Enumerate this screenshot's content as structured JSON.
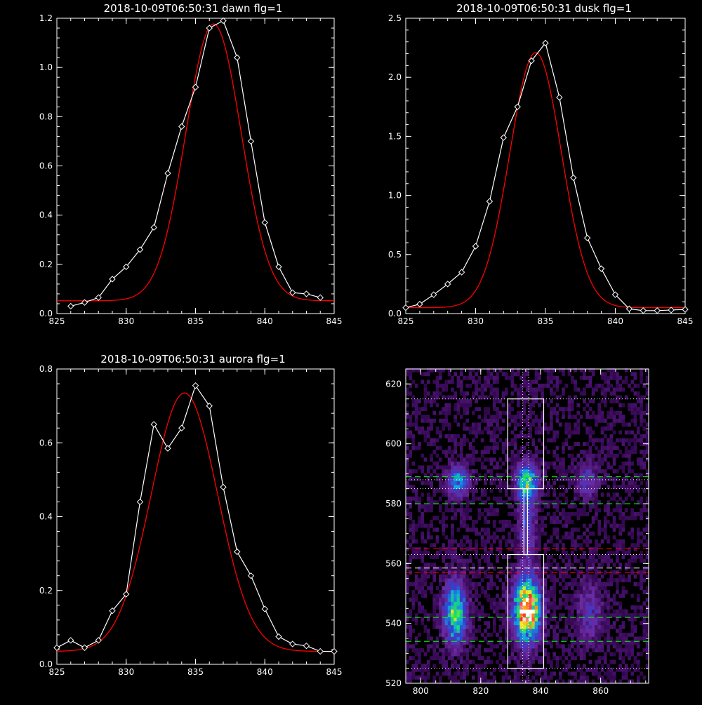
{
  "chart_data": [
    {
      "type": "line",
      "title": "2018-10-09T06:50:31 dawn flg=1",
      "xlim": [
        825,
        845
      ],
      "ylim": [
        0.0,
        1.2
      ],
      "xticks": [
        825,
        830,
        835,
        840,
        845
      ],
      "yticks": [
        0.0,
        0.2,
        0.4,
        0.6,
        0.8,
        1.0,
        1.2
      ],
      "ytick_labels": [
        "0.0",
        "0.2",
        "0.4",
        "0.6",
        "0.8",
        "1.0",
        "1.2"
      ],
      "data_color": "#ffffff",
      "fit_color": "#ff0000",
      "marker": "diamond",
      "x": [
        826,
        827,
        828,
        829,
        830,
        831,
        832,
        833,
        834,
        835,
        836,
        837,
        838,
        839,
        840,
        841,
        842,
        843,
        844
      ],
      "y": [
        0.03,
        0.045,
        0.065,
        0.14,
        0.19,
        0.26,
        0.35,
        0.57,
        0.76,
        0.92,
        1.16,
        1.19,
        1.04,
        0.7,
        0.37,
        0.19,
        0.085,
        0.08,
        0.065
      ],
      "fit": {
        "amplitude": 1.125,
        "center": 836.3,
        "sigma": 2.0,
        "offset": 0.052
      }
    },
    {
      "type": "line",
      "title": "2018-10-09T06:50:31 dusk flg=1",
      "xlim": [
        825,
        845
      ],
      "ylim": [
        0.0,
        2.5
      ],
      "xticks": [
        825,
        830,
        835,
        840,
        845
      ],
      "yticks": [
        0.0,
        0.5,
        1.0,
        1.5,
        2.0,
        2.5
      ],
      "ytick_labels": [
        "0.0",
        "0.5",
        "1.0",
        "1.5",
        "2.0",
        "2.5"
      ],
      "data_color": "#ffffff",
      "fit_color": "#ff0000",
      "marker": "diamond",
      "x": [
        825,
        826,
        827,
        828,
        829,
        830,
        831,
        832,
        833,
        834,
        835,
        836,
        837,
        838,
        839,
        840,
        841,
        842,
        843,
        844,
        845
      ],
      "y": [
        0.05,
        0.08,
        0.16,
        0.25,
        0.35,
        0.57,
        0.95,
        1.49,
        1.75,
        2.14,
        2.29,
        1.83,
        1.15,
        0.64,
        0.38,
        0.16,
        0.04,
        0.025,
        0.025,
        0.03,
        0.035
      ],
      "fit": {
        "amplitude": 2.16,
        "center": 834.3,
        "sigma": 1.85,
        "offset": 0.05
      }
    },
    {
      "type": "line",
      "title": "2018-10-09T06:50:31 aurora flg=1",
      "xlim": [
        825,
        845
      ],
      "ylim": [
        0.0,
        0.8
      ],
      "xticks": [
        825,
        830,
        835,
        840,
        845
      ],
      "yticks": [
        0.0,
        0.2,
        0.4,
        0.6,
        0.8
      ],
      "ytick_labels": [
        "0.0",
        "0.2",
        "0.4",
        "0.6",
        "0.8"
      ],
      "data_color": "#ffffff",
      "fit_color": "#ff0000",
      "marker": "diamond",
      "x": [
        825,
        826,
        827,
        828,
        829,
        830,
        831,
        832,
        833,
        834,
        835,
        836,
        837,
        838,
        839,
        840,
        841,
        842,
        843,
        844,
        845
      ],
      "y": [
        0.045,
        0.065,
        0.045,
        0.065,
        0.145,
        0.19,
        0.44,
        0.65,
        0.585,
        0.64,
        0.755,
        0.7,
        0.48,
        0.305,
        0.24,
        0.15,
        0.075,
        0.055,
        0.05,
        0.035,
        0.035
      ],
      "fit": {
        "amplitude": 0.7,
        "center": 834.2,
        "sigma": 2.4,
        "offset": 0.035
      }
    },
    {
      "type": "heatmap",
      "title": "",
      "xlim": [
        795,
        876
      ],
      "ylim": [
        520,
        625
      ],
      "xticks": [
        800,
        820,
        840,
        860
      ],
      "yticks": [
        520,
        540,
        560,
        580,
        600,
        620
      ],
      "colormap": [
        "#000000",
        "#3a0a5a",
        "#6a2aa0",
        "#3040d0",
        "#10a8e0",
        "#20e060",
        "#f0f020",
        "#ff2020",
        "#ffffff"
      ],
      "blobs": [
        {
          "x": 812,
          "y": 587,
          "sx": 2.5,
          "sy": 3.5,
          "a": 0.42
        },
        {
          "x": 835,
          "y": 587,
          "sx": 2.5,
          "sy": 4,
          "a": 0.5
        },
        {
          "x": 855,
          "y": 587,
          "sx": 2.5,
          "sy": 4,
          "a": 0.22
        },
        {
          "x": 811,
          "y": 543,
          "sx": 2.5,
          "sy": 7,
          "a": 0.6
        },
        {
          "x": 835,
          "y": 544,
          "sx": 3,
          "sy": 7,
          "a": 0.95
        },
        {
          "x": 856,
          "y": 543,
          "sx": 3,
          "sy": 7,
          "a": 0.2
        },
        {
          "x": 835,
          "y": 573,
          "sx": 2,
          "sy": 9,
          "a": 0.25
        }
      ],
      "boxes": [
        {
          "x0": 829,
          "x1": 841,
          "y0": 585,
          "y1": 615,
          "color": "#ffffff"
        },
        {
          "x0": 829,
          "x1": 841,
          "y0": 525,
          "y1": 563,
          "color": "#ffffff"
        },
        {
          "x0": 834.4,
          "x1": 835.6,
          "y0": 563,
          "y1": 585,
          "color": "#ffffff"
        }
      ],
      "vlines": [
        {
          "x": 834.0,
          "color": "#ffffff",
          "style": "dotted"
        },
        {
          "x": 836.0,
          "color": "#ffffff",
          "style": "dotted"
        }
      ],
      "hlines": [
        {
          "y": 615,
          "color": "#ffffff",
          "style": "dotted"
        },
        {
          "y": 589,
          "color": "#00ff00",
          "style": "dashed"
        },
        {
          "y": 588,
          "color": "#ffffff",
          "style": "dotted"
        },
        {
          "y": 585,
          "color": "#ffffff",
          "style": "dotted"
        },
        {
          "y": 580,
          "color": "#00ff00",
          "style": "dashed"
        },
        {
          "y": 565,
          "color": "#ff0000",
          "style": "dashed"
        },
        {
          "y": 563,
          "color": "#ffffff",
          "style": "dotted"
        },
        {
          "y": 558.5,
          "color": "#ffffff",
          "style": "dashed"
        },
        {
          "y": 557,
          "color": "#ff0000",
          "style": "dashed"
        },
        {
          "y": 542,
          "color": "#00ff00",
          "style": "dashed"
        },
        {
          "y": 534,
          "color": "#00ff00",
          "style": "dashed"
        },
        {
          "y": 525,
          "color": "#ffffff",
          "style": "dotted"
        }
      ]
    }
  ]
}
